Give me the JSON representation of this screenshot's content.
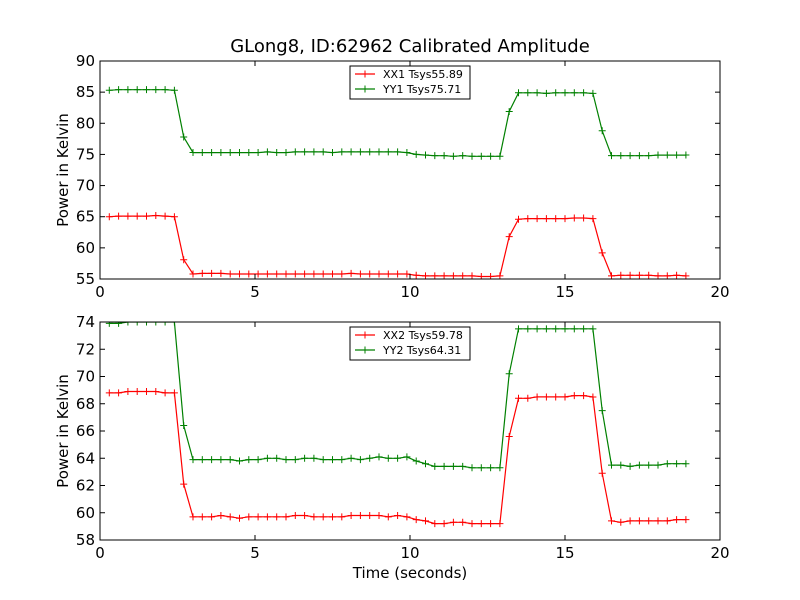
{
  "title": "GLong8, ID:62962 Calibrated Amplitude",
  "colors": {
    "red": "#ff0000",
    "green": "#008000"
  },
  "chart_data": [
    {
      "type": "line",
      "title": "GLong8, ID:62962 Calibrated Amplitude",
      "xlabel": "",
      "ylabel": "Power in Kelvin",
      "xlim": [
        0,
        20
      ],
      "ylim": [
        55,
        90
      ],
      "xticks": [
        0,
        5,
        10,
        15,
        20
      ],
      "yticks": [
        55,
        60,
        65,
        70,
        75,
        80,
        85,
        90
      ],
      "grid": false,
      "legend_position": "top-center",
      "x": [
        0.3,
        0.6,
        0.9,
        1.2,
        1.5,
        1.8,
        2.1,
        2.4,
        2.7,
        3.0,
        3.3,
        3.6,
        3.9,
        4.2,
        4.5,
        4.8,
        5.1,
        5.4,
        5.7,
        6.0,
        6.3,
        6.6,
        6.9,
        7.2,
        7.5,
        7.8,
        8.1,
        8.4,
        8.7,
        9.0,
        9.3,
        9.6,
        9.9,
        10.2,
        10.5,
        10.8,
        11.1,
        11.4,
        11.7,
        12.0,
        12.3,
        12.6,
        12.9,
        13.2,
        13.5,
        13.8,
        14.1,
        14.4,
        14.7,
        15.0,
        15.3,
        15.6,
        15.9,
        16.2,
        16.5,
        16.8,
        17.1,
        17.4,
        17.7,
        18.0,
        18.3,
        18.6,
        18.9
      ],
      "series": [
        {
          "name": "XX1 Tsys55.89",
          "color": "#ff0000",
          "values": [
            65.0,
            65.1,
            65.1,
            65.1,
            65.1,
            65.2,
            65.1,
            65.0,
            58.1,
            55.8,
            55.9,
            55.9,
            55.9,
            55.8,
            55.8,
            55.8,
            55.8,
            55.8,
            55.8,
            55.8,
            55.8,
            55.8,
            55.8,
            55.8,
            55.8,
            55.8,
            55.9,
            55.8,
            55.8,
            55.8,
            55.8,
            55.8,
            55.8,
            55.6,
            55.5,
            55.5,
            55.5,
            55.5,
            55.5,
            55.5,
            55.4,
            55.4,
            55.5,
            61.8,
            64.6,
            64.7,
            64.7,
            64.7,
            64.7,
            64.7,
            64.8,
            64.8,
            64.7,
            59.2,
            55.5,
            55.6,
            55.6,
            55.6,
            55.6,
            55.5,
            55.5,
            55.6,
            55.5
          ]
        },
        {
          "name": "YY1 Tsys75.71",
          "color": "#008000",
          "values": [
            85.3,
            85.4,
            85.4,
            85.4,
            85.4,
            85.4,
            85.4,
            85.3,
            77.8,
            75.3,
            75.3,
            75.3,
            75.3,
            75.3,
            75.3,
            75.3,
            75.3,
            75.4,
            75.3,
            75.3,
            75.4,
            75.4,
            75.4,
            75.4,
            75.3,
            75.4,
            75.4,
            75.4,
            75.4,
            75.4,
            75.4,
            75.4,
            75.3,
            75.0,
            74.9,
            74.8,
            74.8,
            74.7,
            74.8,
            74.7,
            74.7,
            74.7,
            74.7,
            81.9,
            84.9,
            84.9,
            84.9,
            84.8,
            84.9,
            84.9,
            84.9,
            84.9,
            84.8,
            78.8,
            74.8,
            74.8,
            74.8,
            74.8,
            74.8,
            74.9,
            74.9,
            74.9,
            74.9
          ]
        }
      ]
    },
    {
      "type": "line",
      "title": "",
      "xlabel": "Time (seconds)",
      "ylabel": "Power in Kelvin",
      "xlim": [
        0,
        20
      ],
      "ylim": [
        58,
        74
      ],
      "xticks": [
        0,
        5,
        10,
        15,
        20
      ],
      "yticks": [
        58,
        60,
        62,
        64,
        66,
        68,
        70,
        72,
        74
      ],
      "grid": false,
      "legend_position": "top-center",
      "x": [
        0.3,
        0.6,
        0.9,
        1.2,
        1.5,
        1.8,
        2.1,
        2.4,
        2.7,
        3.0,
        3.3,
        3.6,
        3.9,
        4.2,
        4.5,
        4.8,
        5.1,
        5.4,
        5.7,
        6.0,
        6.3,
        6.6,
        6.9,
        7.2,
        7.5,
        7.8,
        8.1,
        8.4,
        8.7,
        9.0,
        9.3,
        9.6,
        9.9,
        10.2,
        10.5,
        10.8,
        11.1,
        11.4,
        11.7,
        12.0,
        12.3,
        12.6,
        12.9,
        13.2,
        13.5,
        13.8,
        14.1,
        14.4,
        14.7,
        15.0,
        15.3,
        15.6,
        15.9,
        16.2,
        16.5,
        16.8,
        17.1,
        17.4,
        17.7,
        18.0,
        18.3,
        18.6,
        18.9
      ],
      "series": [
        {
          "name": "XX2 Tsys59.78",
          "color": "#ff0000",
          "values": [
            68.8,
            68.8,
            68.9,
            68.9,
            68.9,
            68.9,
            68.8,
            68.8,
            62.1,
            59.7,
            59.7,
            59.7,
            59.8,
            59.7,
            59.6,
            59.7,
            59.7,
            59.7,
            59.7,
            59.7,
            59.8,
            59.8,
            59.7,
            59.7,
            59.7,
            59.7,
            59.8,
            59.8,
            59.8,
            59.8,
            59.7,
            59.8,
            59.7,
            59.5,
            59.4,
            59.2,
            59.2,
            59.3,
            59.3,
            59.2,
            59.2,
            59.2,
            59.2,
            65.6,
            68.4,
            68.4,
            68.5,
            68.5,
            68.5,
            68.5,
            68.6,
            68.6,
            68.5,
            62.9,
            59.4,
            59.3,
            59.4,
            59.4,
            59.4,
            59.4,
            59.4,
            59.5,
            59.5
          ]
        },
        {
          "name": "YY2 Tsys64.31",
          "color": "#008000",
          "values": [
            73.9,
            73.9,
            74.0,
            74.0,
            74.0,
            74.0,
            74.0,
            74.0,
            66.4,
            63.9,
            63.9,
            63.9,
            63.9,
            63.9,
            63.8,
            63.9,
            63.9,
            64.0,
            64.0,
            63.9,
            63.9,
            64.0,
            64.0,
            63.9,
            63.9,
            63.9,
            64.0,
            63.9,
            64.0,
            64.1,
            64.0,
            64.0,
            64.1,
            63.8,
            63.6,
            63.4,
            63.4,
            63.4,
            63.4,
            63.3,
            63.3,
            63.3,
            63.3,
            70.2,
            73.5,
            73.5,
            73.5,
            73.5,
            73.5,
            73.5,
            73.5,
            73.5,
            73.5,
            67.5,
            63.5,
            63.5,
            63.4,
            63.5,
            63.5,
            63.5,
            63.6,
            63.6,
            63.6
          ]
        }
      ]
    }
  ]
}
